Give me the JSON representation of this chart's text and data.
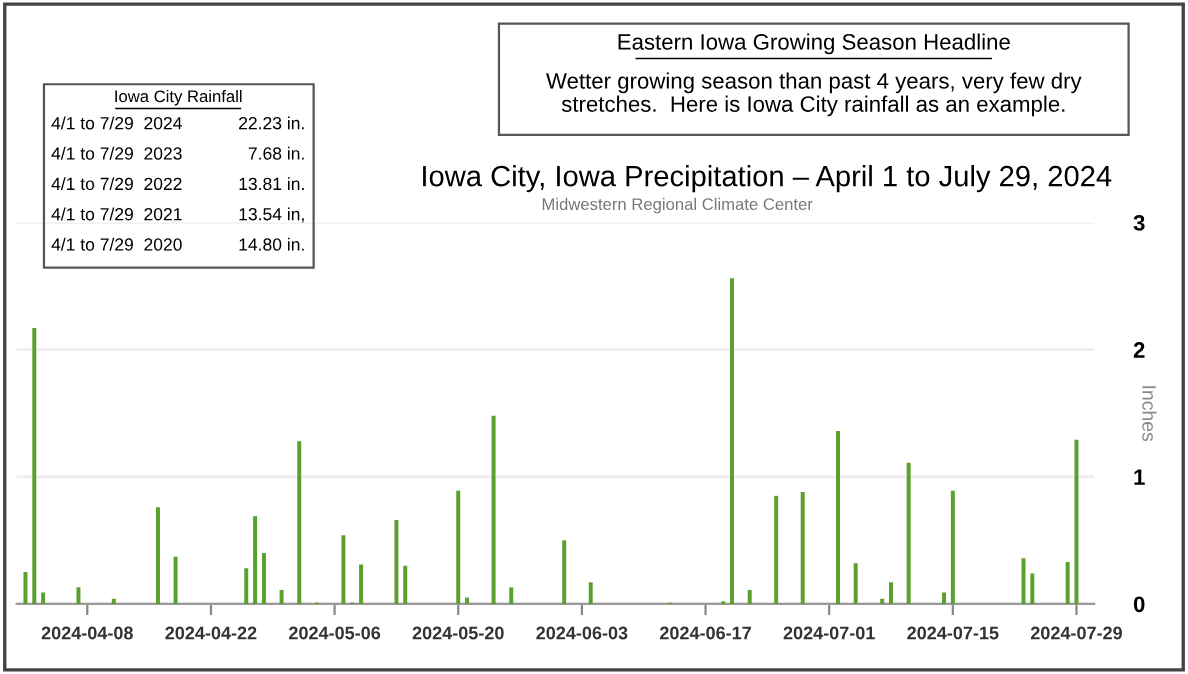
{
  "chart_data": {
    "type": "bar",
    "title": "Iowa City, Iowa Precipitation – April 1 to July 29, 2024",
    "subtitle": "Midwestern Regional Climate Center",
    "ylabel": "Inches",
    "annotations": [
      "Eastern Iowa Growing Season Headline",
      "Wetter growing season than past 4 years, very few dry\nstretches.  Here is Iowa City rainfall as an example.",
      "Iowa City Rainfall",
      "4/1 to 7/29  2024",
      "22.23 in.",
      "4/1 to 7/29  2023",
      "7.68 in.",
      "4/1 to 7/29  2022",
      "13.81 in.",
      "4/1 to 7/29  2021",
      "13.54 in,",
      "4/1 to 7/29  2020",
      "14.80 in."
    ],
    "x": [
      "2024-04-01",
      "2024-04-02",
      "2024-04-03",
      "2024-04-07",
      "2024-04-11",
      "2024-04-16",
      "2024-04-18",
      "2024-04-26",
      "2024-04-27",
      "2024-04-28",
      "2024-04-30",
      "2024-05-02",
      "2024-05-04",
      "2024-05-07",
      "2024-05-08",
      "2024-05-09",
      "2024-05-13",
      "2024-05-14",
      "2024-05-20",
      "2024-05-21",
      "2024-05-24",
      "2024-05-26",
      "2024-06-01",
      "2024-06-04",
      "2024-06-13",
      "2024-06-19",
      "2024-06-20",
      "2024-06-22",
      "2024-06-25",
      "2024-06-28",
      "2024-07-02",
      "2024-07-04",
      "2024-07-07",
      "2024-07-08",
      "2024-07-10",
      "2024-07-14",
      "2024-07-15",
      "2024-07-23",
      "2024-07-24",
      "2024-07-28",
      "2024-07-29"
    ],
    "values": [
      0.25,
      2.17,
      0.09,
      0.13,
      0.04,
      0.76,
      0.37,
      0.28,
      0.69,
      0.4,
      0.11,
      1.28,
      0.01,
      0.54,
      0.01,
      0.31,
      0.66,
      0.3,
      0.89,
      0.05,
      1.48,
      0.13,
      0.5,
      0.17,
      0.01,
      0.02,
      2.56,
      0.11,
      0.85,
      0.88,
      1.36,
      0.32,
      0.04,
      0.17,
      1.11,
      0.09,
      0.89,
      0.36,
      0.24,
      0.33,
      1.29
    ],
    "color": "#5aa02c",
    "xlim": [
      "2024-03-31",
      "2024-07-31"
    ],
    "xticks": [
      "2024-04-08",
      "2024-04-22",
      "2024-05-06",
      "2024-05-20",
      "2024-06-03",
      "2024-06-17",
      "2024-07-01",
      "2024-07-15",
      "2024-07-29"
    ],
    "ylim": [
      0,
      3
    ],
    "yticks": [
      0,
      1,
      2,
      3
    ],
    "grid": "y",
    "legend": false
  }
}
